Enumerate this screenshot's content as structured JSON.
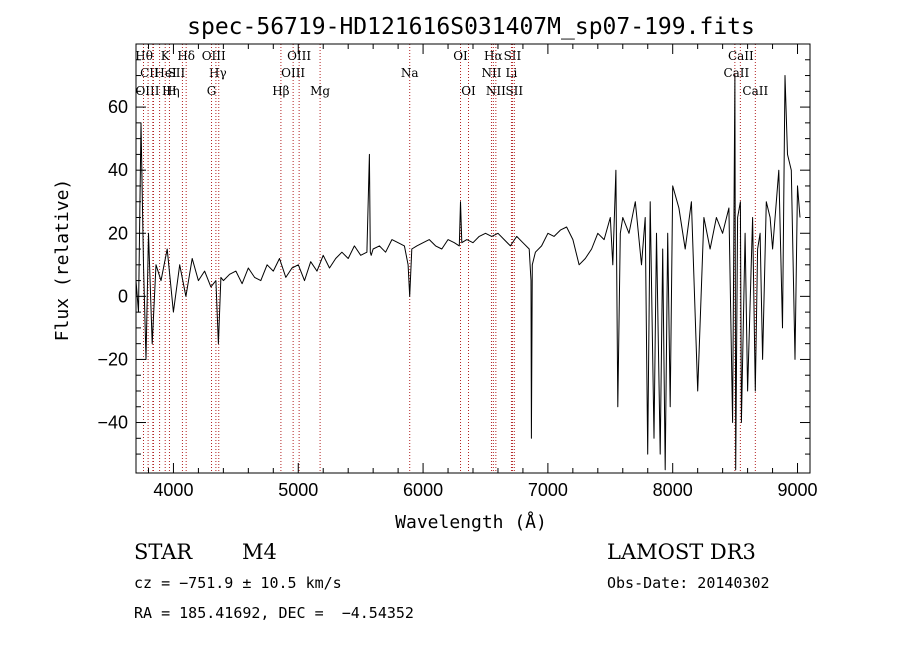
{
  "chart_data": {
    "type": "line",
    "title": "spec-56719-HD121616S031407M_sp07-199.fits",
    "xlabel": "Wavelength (Å)",
    "ylabel": "Flux (relative)",
    "xlim": [
      3700,
      9100
    ],
    "ylim": [
      -56,
      80
    ],
    "xticks": [
      4000,
      5000,
      6000,
      7000,
      8000,
      9000
    ],
    "xtick_labels": [
      "4000",
      "5000",
      "6000",
      "7000",
      "8000",
      "9000"
    ],
    "yticks": [
      -40,
      -20,
      0,
      20,
      40,
      60
    ],
    "ytick_labels": [
      "−40",
      "−20",
      "0",
      "20",
      "40",
      "60"
    ],
    "line_color": "#000000",
    "marker_color": "#b22222",
    "series": [
      {
        "name": "spectrum",
        "x": [
          3700,
          3720,
          3740,
          3760,
          3780,
          3800,
          3830,
          3860,
          3900,
          3950,
          4000,
          4050,
          4100,
          4150,
          4200,
          4250,
          4300,
          4340,
          4360,
          4380,
          4400,
          4450,
          4500,
          4550,
          4600,
          4650,
          4700,
          4750,
          4800,
          4850,
          4900,
          4950,
          5000,
          5050,
          5100,
          5150,
          5200,
          5250,
          5300,
          5350,
          5400,
          5450,
          5500,
          5550,
          5570,
          5577,
          5584,
          5600,
          5650,
          5700,
          5750,
          5800,
          5850,
          5880,
          5893,
          5910,
          5950,
          6000,
          6050,
          6100,
          6150,
          6200,
          6250,
          6290,
          6300,
          6310,
          6350,
          6400,
          6450,
          6500,
          6550,
          6600,
          6650,
          6700,
          6750,
          6800,
          6850,
          6865,
          6868,
          6875,
          6900,
          6950,
          7000,
          7050,
          7100,
          7150,
          7200,
          7250,
          7300,
          7350,
          7400,
          7450,
          7500,
          7520,
          7545,
          7560,
          7580,
          7600,
          7650,
          7700,
          7750,
          7780,
          7800,
          7820,
          7850,
          7870,
          7900,
          7920,
          7940,
          7960,
          7980,
          8000,
          8050,
          8100,
          8150,
          8200,
          8250,
          8300,
          8350,
          8400,
          8450,
          8480,
          8498,
          8505,
          8520,
          8542,
          8550,
          8580,
          8600,
          8640,
          8662,
          8680,
          8700,
          8720,
          8750,
          8780,
          8800,
          8850,
          8880,
          8900,
          8920,
          8950,
          8980,
          9000,
          9020
        ],
        "y": [
          5,
          -5,
          55,
          10,
          -20,
          20,
          -15,
          10,
          5,
          15,
          -5,
          10,
          0,
          12,
          5,
          8,
          3,
          5,
          -15,
          6,
          5,
          7,
          8,
          4,
          9,
          6,
          5,
          10,
          8,
          12,
          6,
          9,
          10,
          5,
          11,
          8,
          13,
          9,
          12,
          14,
          12,
          16,
          13,
          14,
          45,
          14,
          13,
          15,
          16,
          14,
          18,
          17,
          16,
          10,
          0,
          15,
          16,
          17,
          18,
          16,
          15,
          18,
          17,
          16,
          30,
          17,
          18,
          17,
          19,
          20,
          19,
          20,
          18,
          16,
          19,
          17,
          15,
          5,
          -45,
          10,
          14,
          16,
          20,
          19,
          21,
          22,
          18,
          10,
          12,
          15,
          20,
          18,
          25,
          10,
          40,
          -35,
          20,
          25,
          20,
          30,
          10,
          25,
          -50,
          30,
          -45,
          20,
          -50,
          15,
          -55,
          20,
          -35,
          35,
          28,
          15,
          30,
          -30,
          25,
          15,
          25,
          20,
          28,
          -40,
          70,
          -55,
          25,
          30,
          -40,
          20,
          -30,
          25,
          -30,
          15,
          20,
          -20,
          30,
          25,
          15,
          40,
          -10,
          70,
          45,
          40,
          -20,
          35,
          25
        ]
      }
    ],
    "line_markers": [
      {
        "label": "Hθ",
        "x": 3797,
        "row": 0,
        "dx": -4
      },
      {
        "label": "CII",
        "x": 3840,
        "row": 1,
        "dx": -4
      },
      {
        "label": "OIII",
        "x": 3760,
        "row": 2,
        "dx": 4
      },
      {
        "label": "K",
        "x": 3934,
        "row": 0,
        "dx": 0
      },
      {
        "label": "HeI",
        "x": 3889,
        "row": 1,
        "dx": 6
      },
      {
        "label": "Hη",
        "x": 3835,
        "row": 2,
        "dx": 18
      },
      {
        "label": "H",
        "x": 3968,
        "row": 2,
        "dx": 2
      },
      {
        "label": "SII",
        "x": 4072,
        "row": 1,
        "dx": -6
      },
      {
        "label": "Hδ",
        "x": 4102,
        "row": 0,
        "dx": 0
      },
      {
        "label": "OIII",
        "x": 4363,
        "row": 0,
        "dx": -5
      },
      {
        "label": "Hγ",
        "x": 4340,
        "row": 1,
        "dx": 2
      },
      {
        "label": "G",
        "x": 4305,
        "row": 2,
        "dx": 0
      },
      {
        "label": "Hβ",
        "x": 4861,
        "row": 2,
        "dx": 0
      },
      {
        "label": "OIII",
        "x": 4959,
        "row": 1,
        "dx": 0
      },
      {
        "label": "OIII",
        "x": 5007,
        "row": 0,
        "dx": 0
      },
      {
        "label": "Mg",
        "x": 5175,
        "row": 2,
        "dx": 0
      },
      {
        "label": "Na",
        "x": 5893,
        "row": 1,
        "dx": 0
      },
      {
        "label": "OI",
        "x": 6300,
        "row": 0,
        "dx": 0
      },
      {
        "label": "OI",
        "x": 6364,
        "row": 2,
        "dx": 0
      },
      {
        "label": "Hα",
        "x": 6563,
        "row": 0,
        "dx": 0
      },
      {
        "label": "NII",
        "x": 6548,
        "row": 1,
        "dx": 0
      },
      {
        "label": "NII",
        "x": 6583,
        "row": 2,
        "dx": 0
      },
      {
        "label": "SII",
        "x": 6716,
        "row": 0,
        "dx": 0
      },
      {
        "label": "Li",
        "x": 6708,
        "row": 1,
        "dx": 0
      },
      {
        "label": "SII",
        "x": 6731,
        "row": 2,
        "dx": 0
      },
      {
        "label": "CaII",
        "x": 8498,
        "row": 0,
        "dx": 6
      },
      {
        "label": "CaII",
        "x": 8542,
        "row": 1,
        "dx": -4
      },
      {
        "label": "CaII",
        "x": 8662,
        "row": 2,
        "dx": 0
      }
    ]
  },
  "info": {
    "object_class": "STAR",
    "subclass": "M4",
    "survey": "LAMOST DR3",
    "cz": "cz = −751.9 ± 10.5 km/s",
    "obs_date": "Obs-Date: 20140302",
    "coords": "RA = 185.41692, DEC =  −4.54352"
  }
}
